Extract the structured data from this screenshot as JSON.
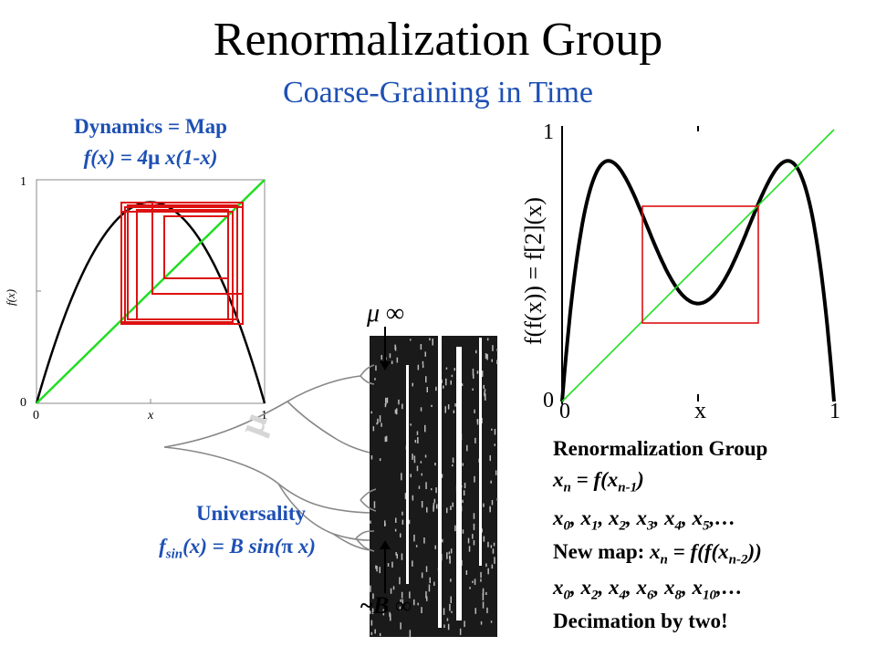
{
  "title": "Renormalization Group",
  "subtitle": "Coarse-Graining in Time",
  "dynamics": {
    "title": "Dynamics = Map",
    "formula_prefix": "f(x) = 4",
    "formula_mu": "μ",
    "formula_suffix": " x(1-x)",
    "plot": {
      "y_tick_top": "1",
      "y_tick_bottom": "0",
      "x_tick_left": "0",
      "x_tick_mid": "x",
      "x_tick_right": "1",
      "ylabel": "f(x)"
    }
  },
  "bifurcation": {
    "mu_inf_label": "μ ∞",
    "b_inf_label": "~B ∞"
  },
  "universality": {
    "title": "Universality",
    "f": "f",
    "sub": "sin",
    "rest_prefix": "(x) = B sin(",
    "pi": "π",
    "rest_suffix": " x)"
  },
  "second_iterate": {
    "y_tick_top": "1",
    "y_tick_bottom": "0",
    "x_tick_left": "0",
    "x_tick_mid": "x",
    "x_tick_right": "1",
    "ylabel": "f(f(x)) = f[2](x)"
  },
  "rg_text": {
    "heading": "Renormalization Group",
    "line1": {
      "x": "x",
      "n": "n",
      "eq": " = f(x",
      "nm1": "n-1",
      "close": ")"
    },
    "line2": {
      "x": "x",
      "subs": [
        "0",
        "1",
        "2",
        "3",
        "4",
        "5"
      ],
      "ellipsis": ",…"
    },
    "line3": {
      "prefix": "New map: ",
      "x": "x",
      "n": "n",
      "eq": " = f(f(x",
      "nm2": "n-2",
      "close": "))"
    },
    "line4": {
      "x": "x",
      "subs": [
        "0",
        "2",
        "4",
        "6",
        "8",
        "10"
      ],
      "ellipsis": ",…"
    },
    "line5": "Decimation by two!"
  },
  "colors": {
    "blue": "#1e50b4",
    "red": "#dd1111",
    "green": "#22dd22",
    "black": "#000000"
  }
}
